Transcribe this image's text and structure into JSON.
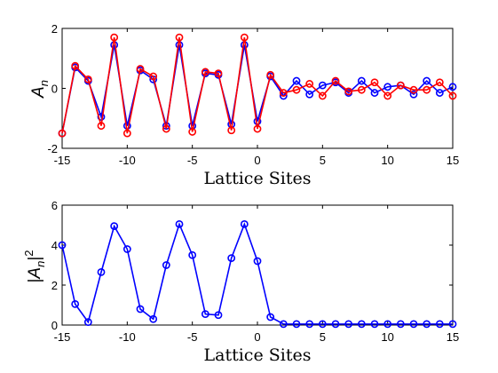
{
  "chart_data": [
    {
      "type": "line",
      "xlabel": "Lattice Sites",
      "ylabel": "A_n",
      "xlim": [
        -15,
        15
      ],
      "ylim": [
        -2,
        2
      ],
      "xticks": [
        -15,
        -10,
        -5,
        0,
        5,
        10,
        15
      ],
      "yticks": [
        -2,
        0,
        2
      ],
      "x": [
        -15,
        -14,
        -13,
        -12,
        -11,
        -10,
        -9,
        -8,
        -7,
        -6,
        -5,
        -4,
        -3,
        -2,
        -1,
        0,
        1,
        2,
        3,
        4,
        5,
        6,
        7,
        8,
        9,
        10,
        11,
        12,
        13,
        14,
        15
      ],
      "series": [
        {
          "color": "#0000ff",
          "marker": "circle",
          "values": [
            -1.5,
            0.7,
            0.25,
            -0.95,
            1.45,
            -1.25,
            0.6,
            0.3,
            -1.25,
            1.45,
            -1.25,
            0.5,
            0.45,
            -1.2,
            1.45,
            -1.1,
            0.4,
            -0.25,
            0.25,
            -0.2,
            0.1,
            0.2,
            -0.15,
            0.25,
            -0.15,
            0.05,
            0.1,
            -0.2,
            0.25,
            -0.15,
            0.05
          ]
        },
        {
          "color": "#ff0000",
          "marker": "circle",
          "values": [
            -1.5,
            0.75,
            0.3,
            -1.25,
            1.7,
            -1.5,
            0.65,
            0.4,
            -1.35,
            1.7,
            -1.45,
            0.55,
            0.5,
            -1.4,
            1.7,
            -1.35,
            0.45,
            -0.15,
            -0.05,
            0.15,
            -0.25,
            0.25,
            -0.1,
            -0.05,
            0.2,
            -0.25,
            0.1,
            -0.05,
            -0.05,
            0.2,
            -0.25
          ]
        }
      ]
    },
    {
      "type": "line",
      "xlabel": "Lattice Sites",
      "ylabel": "|A_n|^2",
      "xlim": [
        -15,
        15
      ],
      "ylim": [
        0,
        6
      ],
      "xticks": [
        -15,
        -10,
        -5,
        0,
        5,
        10,
        15
      ],
      "yticks": [
        0,
        2,
        4,
        6
      ],
      "x": [
        -15,
        -14,
        -13,
        -12,
        -11,
        -10,
        -9,
        -8,
        -7,
        -6,
        -5,
        -4,
        -3,
        -2,
        -1,
        0,
        1,
        2,
        3,
        4,
        5,
        6,
        7,
        8,
        9,
        10,
        11,
        12,
        13,
        14,
        15
      ],
      "series": [
        {
          "color": "#0000ff",
          "marker": "circle",
          "values": [
            4.0,
            1.05,
            0.15,
            2.65,
            4.95,
            3.8,
            0.8,
            0.3,
            3.0,
            5.05,
            3.5,
            0.55,
            0.5,
            3.35,
            5.05,
            3.2,
            0.4,
            0.05,
            0.05,
            0.05,
            0.05,
            0.05,
            0.05,
            0.05,
            0.05,
            0.05,
            0.05,
            0.05,
            0.05,
            0.05,
            0.05
          ]
        }
      ]
    }
  ]
}
